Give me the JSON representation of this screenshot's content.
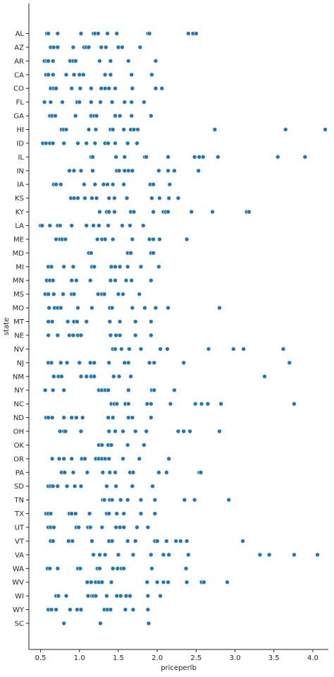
{
  "chart_data": {
    "type": "scatter",
    "title": "",
    "xlabel": "priceperlb",
    "ylabel": "state",
    "xlim": [
      0.35,
      4.2
    ],
    "xticks": [
      "0.5",
      "1.0",
      "1.5",
      "2.0",
      "2.5",
      "3.0",
      "3.5",
      "4.0"
    ],
    "marker_color": "#1f77b4",
    "grid": false,
    "legend": "none",
    "categories": [
      "AL",
      "AZ",
      "AR",
      "CA",
      "CO",
      "FL",
      "GA",
      "HI",
      "ID",
      "IL",
      "IN",
      "IA",
      "KS",
      "KY",
      "LA",
      "ME",
      "MD",
      "MI",
      "MN",
      "MS",
      "MO",
      "MT",
      "NE",
      "NV",
      "NJ",
      "NM",
      "NY",
      "NC",
      "ND",
      "OH",
      "OK",
      "OR",
      "PA",
      "SD",
      "TN",
      "TX",
      "UT",
      "VT",
      "VA",
      "WA",
      "WV",
      "WI",
      "WY",
      "SC"
    ],
    "points": [
      {
        "state": "AL",
        "values": [
          0.58,
          0.6,
          0.72,
          1.02,
          1.18,
          1.2,
          1.24,
          1.36,
          1.48,
          1.88,
          1.9,
          2.4,
          2.46,
          2.5
        ]
      },
      {
        "state": "AZ",
        "values": [
          0.63,
          0.67,
          0.72,
          0.92,
          1.06,
          1.09,
          1.12,
          1.28,
          1.34,
          1.5,
          1.55,
          1.78
        ]
      },
      {
        "state": "AR",
        "values": [
          0.55,
          0.58,
          0.6,
          0.66,
          0.88,
          0.92,
          0.95,
          1.26,
          1.4,
          1.63,
          1.98
        ]
      },
      {
        "state": "CA",
        "values": [
          0.57,
          0.6,
          0.66,
          0.83,
          0.93,
          1.0,
          1.05,
          1.33,
          1.4,
          1.67,
          1.93
        ]
      },
      {
        "state": "CO",
        "values": [
          0.63,
          0.67,
          0.7,
          0.9,
          1.01,
          1.15,
          1.28,
          1.33,
          1.38,
          1.46,
          1.68,
          1.98,
          2.06
        ]
      },
      {
        "state": "FL",
        "values": [
          0.55,
          0.63,
          0.78,
          0.97,
          1.0,
          1.15,
          1.27,
          1.42,
          1.58,
          1.67,
          1.83
        ]
      },
      {
        "state": "GA",
        "values": [
          0.62,
          0.65,
          0.69,
          0.95,
          1.15,
          1.19,
          1.22,
          1.46,
          1.52,
          1.67,
          1.92
        ]
      },
      {
        "state": "HI",
        "values": [
          0.77,
          0.8,
          0.83,
          1.12,
          1.21,
          1.4,
          1.43,
          1.57,
          1.66,
          1.7,
          1.75,
          2.74,
          3.65,
          4.16
        ]
      },
      {
        "state": "ID",
        "values": [
          0.53,
          0.57,
          0.62,
          0.66,
          0.8,
          0.98,
          1.09,
          1.2,
          1.33,
          1.37,
          1.46,
          1.62,
          1.74
        ]
      },
      {
        "state": "IL",
        "values": [
          1.15,
          1.17,
          1.47,
          1.58,
          1.84,
          1.86,
          2.14,
          2.48,
          2.54,
          2.59,
          2.78,
          3.55,
          3.9
        ]
      },
      {
        "state": "IN",
        "values": [
          0.87,
          0.93,
          1.02,
          1.17,
          1.48,
          1.51,
          1.58,
          1.63,
          1.68,
          2.02,
          2.14,
          2.22,
          2.53
        ]
      },
      {
        "state": "IA",
        "values": [
          0.67,
          0.7,
          0.76,
          1.06,
          1.2,
          1.31,
          1.36,
          1.43,
          1.57,
          1.91,
          1.95,
          2.16
        ]
      },
      {
        "state": "KS",
        "values": [
          0.89,
          0.93,
          0.98,
          1.07,
          1.16,
          1.22,
          1.38,
          1.45,
          1.61,
          1.93,
          2.03,
          2.15,
          2.27
        ]
      },
      {
        "state": "KY",
        "values": [
          1.26,
          1.35,
          1.38,
          1.45,
          1.66,
          1.7,
          1.95,
          2.08,
          2.11,
          2.14,
          2.44,
          2.71,
          3.15,
          3.18
        ]
      },
      {
        "state": "LA",
        "values": [
          0.5,
          0.52,
          0.62,
          0.72,
          0.75,
          0.9,
          1.09,
          1.18,
          1.25,
          1.37,
          1.55,
          1.65,
          1.82
        ]
      },
      {
        "state": "ME",
        "values": [
          0.7,
          0.75,
          0.78,
          0.82,
          1.23,
          1.29,
          1.33,
          1.43,
          1.68,
          1.9,
          1.95,
          2.03,
          2.38
        ]
      },
      {
        "state": "MD",
        "values": [
          1.12,
          1.15,
          1.62,
          1.66,
          1.92,
          1.95
        ]
      },
      {
        "state": "MI",
        "values": [
          0.6,
          0.64,
          0.8,
          0.92,
          1.16,
          1.19,
          1.41,
          1.46,
          1.52,
          1.62,
          1.79,
          2.02
        ]
      },
      {
        "state": "MN",
        "values": [
          0.58,
          0.62,
          0.66,
          0.9,
          0.96,
          1.14,
          1.4,
          1.46,
          1.6,
          1.67,
          1.92
        ]
      },
      {
        "state": "MS",
        "values": [
          0.56,
          0.6,
          0.67,
          0.79,
          0.9,
          0.93,
          1.24,
          1.29,
          1.32,
          1.5,
          1.56,
          1.77
        ]
      },
      {
        "state": "MO",
        "values": [
          0.61,
          0.68,
          0.72,
          0.76,
          0.98,
          1.16,
          1.39,
          1.42,
          1.68,
          1.84,
          1.98,
          2.14,
          2.8
        ]
      },
      {
        "state": "MT",
        "values": [
          0.6,
          0.65,
          0.85,
          0.93,
          0.97,
          1.09,
          1.39,
          1.52,
          1.72,
          1.92
        ]
      },
      {
        "state": "NE",
        "values": [
          0.6,
          0.72,
          0.87,
          0.92,
          0.98,
          1.02,
          1.4,
          1.47,
          1.52,
          1.72,
          1.92
        ]
      },
      {
        "state": "NV",
        "values": [
          1.43,
          1.46,
          1.54,
          1.64,
          1.79,
          2.04,
          2.13,
          2.66,
          2.98,
          3.11,
          3.62
        ]
      },
      {
        "state": "NJ",
        "values": [
          0.6,
          0.64,
          0.76,
          0.84,
          1.0,
          1.14,
          1.19,
          1.38,
          1.58,
          1.63,
          1.9,
          1.96,
          2.34,
          3.7
        ]
      },
      {
        "state": "NM",
        "values": [
          0.67,
          0.73,
          0.77,
          1.02,
          1.09,
          1.15,
          1.19,
          1.44,
          1.51,
          1.66,
          3.38
        ]
      },
      {
        "state": "NY",
        "values": [
          0.56,
          0.66,
          0.8,
          1.25,
          1.29,
          1.33,
          1.37,
          1.63,
          1.93,
          1.96,
          2.22
        ]
      },
      {
        "state": "NC",
        "values": [
          1.41,
          1.45,
          1.48,
          1.59,
          1.63,
          1.87,
          1.92,
          2.17,
          2.49,
          2.57,
          2.65,
          2.82,
          3.76
        ]
      },
      {
        "state": "ND",
        "values": [
          0.57,
          0.6,
          0.65,
          0.8,
          0.9,
          0.96,
          1.04,
          1.37,
          1.43,
          1.63,
          1.68,
          1.92
        ]
      },
      {
        "state": "OH",
        "values": [
          0.75,
          0.8,
          0.82,
          1.02,
          1.38,
          1.46,
          1.56,
          1.72,
          1.86,
          2.27,
          2.34,
          2.42,
          2.8
        ]
      },
      {
        "state": "OK",
        "values": [
          1.25,
          1.29,
          1.37,
          1.41,
          1.62,
          1.83
        ]
      },
      {
        "state": "OR",
        "values": [
          0.65,
          0.74,
          0.8,
          0.9,
          1.03,
          1.07,
          1.21,
          1.25,
          1.29,
          1.33,
          1.38,
          1.56,
          1.77,
          2.15
        ]
      },
      {
        "state": "PA",
        "values": [
          0.77,
          0.81,
          0.92,
          1.1,
          1.3,
          1.39,
          1.46,
          1.65,
          1.69,
          2.02,
          2.12,
          2.54,
          2.56
        ]
      },
      {
        "state": "SD",
        "values": [
          0.6,
          0.63,
          0.66,
          0.72,
          0.84,
          0.94,
          1.02,
          1.35,
          1.47,
          1.68,
          1.94
        ]
      },
      {
        "state": "TN",
        "values": [
          1.3,
          1.32,
          1.39,
          1.42,
          1.53,
          1.62,
          1.79,
          1.97,
          2.35,
          2.48,
          2.92
        ]
      },
      {
        "state": "TX",
        "values": [
          0.57,
          0.6,
          0.63,
          0.87,
          0.9,
          0.95,
          1.13,
          1.35,
          1.38,
          1.48,
          1.57,
          1.79,
          1.97
        ]
      },
      {
        "state": "UT",
        "values": [
          0.6,
          0.63,
          0.67,
          0.96,
          0.99,
          1.11,
          1.14,
          1.29,
          1.47,
          1.52,
          1.57,
          1.74,
          1.88
        ]
      },
      {
        "state": "VT",
        "values": [
          0.63,
          0.66,
          0.86,
          0.91,
          1.16,
          1.38,
          1.42,
          1.62,
          1.72,
          1.97,
          2.0,
          2.12,
          2.24,
          2.3,
          2.38,
          3.1
        ]
      },
      {
        "state": "VA",
        "values": [
          1.18,
          1.26,
          1.33,
          1.5,
          1.69,
          1.92,
          2.08,
          2.15,
          2.4,
          3.32,
          3.44,
          3.76,
          4.06
        ]
      },
      {
        "state": "WA",
        "values": [
          0.59,
          0.62,
          0.72,
          0.98,
          1.01,
          1.23,
          1.26,
          1.43,
          1.49,
          1.54,
          1.57,
          1.93,
          2.37
        ]
      },
      {
        "state": "WV",
        "values": [
          1.1,
          1.15,
          1.21,
          1.25,
          1.29,
          1.41,
          1.87,
          2.0,
          2.08,
          2.14,
          2.38,
          2.57,
          2.6,
          2.9
        ]
      },
      {
        "state": "WI",
        "values": [
          0.7,
          0.73,
          0.83,
          1.11,
          1.16,
          1.18,
          1.21,
          1.35,
          1.48,
          1.53,
          1.6,
          1.65,
          1.88,
          2.04
        ]
      },
      {
        "state": "WY",
        "values": [
          0.6,
          0.64,
          0.7,
          0.88,
          0.97,
          1.02,
          1.32,
          1.36,
          1.4,
          1.59,
          1.69,
          1.88
        ]
      },
      {
        "state": "SC",
        "values": [
          0.8,
          1.27,
          1.89
        ]
      }
    ]
  }
}
